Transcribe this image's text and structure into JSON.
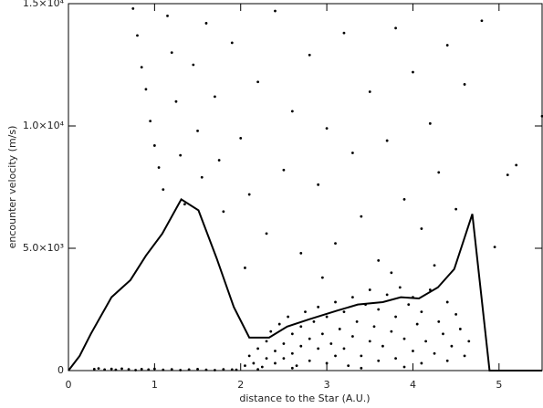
{
  "chart_data": {
    "type": "scatter",
    "xlabel": "distance to the Star (A.U.)",
    "ylabel": "encounter velocity (m/s)",
    "xlim": [
      0,
      5.5
    ],
    "xticks": [
      0,
      1,
      2,
      3,
      4,
      5
    ],
    "ylim": [
      0,
      15000
    ],
    "yticks": [
      0,
      {
        "value": 5000,
        "label": "5.0×10³"
      },
      {
        "value": 10000,
        "label": "1.0×10⁴"
      },
      {
        "value": 15000,
        "label": "1.5×10⁴"
      }
    ],
    "series": [
      {
        "type": "scatter",
        "color": "#000000",
        "x": [
          0.3,
          0.35,
          0.42,
          0.5,
          0.55,
          0.62,
          0.7,
          0.78,
          0.85,
          0.93,
          1.0,
          1.1,
          1.2,
          1.3,
          1.4,
          1.5,
          1.6,
          1.7,
          1.8,
          1.9,
          1.95,
          2.05,
          2.1,
          2.15,
          2.2,
          2.25,
          2.3,
          2.3,
          2.35,
          2.4,
          2.4,
          2.45,
          2.5,
          2.5,
          2.55,
          2.6,
          2.6,
          2.65,
          2.7,
          2.7,
          2.75,
          2.8,
          2.8,
          2.85,
          2.9,
          2.9,
          2.95,
          3.0,
          3.0,
          3.05,
          3.1,
          3.1,
          3.15,
          3.2,
          3.2,
          3.25,
          3.3,
          3.3,
          3.35,
          3.4,
          3.45,
          3.5,
          3.5,
          3.55,
          3.6,
          3.6,
          3.65,
          3.7,
          3.75,
          3.8,
          3.8,
          3.85,
          3.9,
          3.95,
          4.0,
          4.0,
          4.05,
          4.1,
          4.1,
          4.15,
          4.2,
          4.25,
          4.3,
          4.35,
          4.4,
          4.4,
          4.45,
          4.5,
          4.55,
          4.6,
          4.65,
          2.2,
          2.6,
          3.4,
          3.9,
          0.75,
          0.8,
          0.85,
          0.9,
          0.95,
          1.0,
          1.05,
          1.1,
          1.15,
          1.2,
          1.25,
          1.3,
          1.35,
          1.45,
          1.5,
          1.55,
          1.6,
          1.7,
          1.75,
          1.8,
          1.9,
          2.0,
          2.1,
          2.2,
          2.3,
          2.4,
          2.5,
          2.6,
          2.7,
          2.8,
          2.9,
          3.0,
          3.1,
          3.2,
          3.3,
          3.4,
          3.5,
          3.6,
          3.7,
          3.8,
          3.9,
          4.0,
          4.1,
          4.2,
          4.3,
          4.4,
          4.5,
          4.6,
          4.8,
          4.95,
          5.1,
          5.2,
          5.5,
          2.05,
          2.95,
          3.75,
          4.25
        ],
        "values": [
          60,
          90,
          40,
          70,
          30,
          80,
          50,
          20,
          60,
          40,
          70,
          30,
          50,
          20,
          40,
          60,
          30,
          20,
          50,
          40,
          30,
          200,
          600,
          300,
          900,
          150,
          1200,
          500,
          1600,
          800,
          300,
          1900,
          1100,
          500,
          2200,
          1500,
          700,
          200,
          1800,
          1000,
          2400,
          1300,
          400,
          2000,
          900,
          2600,
          1500,
          300,
          2200,
          1100,
          2800,
          600,
          1700,
          2400,
          900,
          200,
          3000,
          1400,
          2000,
          600,
          2700,
          1200,
          3300,
          1800,
          400,
          2500,
          1000,
          3100,
          1600,
          2200,
          500,
          3400,
          1300,
          2700,
          800,
          3000,
          1900,
          300,
          2400,
          1200,
          3300,
          700,
          2000,
          1500,
          2800,
          400,
          1000,
          2300,
          1700,
          600,
          1200,
          50,
          100,
          100,
          150,
          14800,
          13700,
          12400,
          11500,
          10200,
          9200,
          8300,
          7400,
          14500,
          13000,
          11000,
          8800,
          6800,
          12500,
          9800,
          7900,
          14200,
          11200,
          8600,
          6500,
          13400,
          9500,
          7200,
          11800,
          5600,
          14700,
          8200,
          10600,
          4800,
          12900,
          7600,
          9900,
          5200,
          13800,
          8900,
          6300,
          11400,
          4500,
          9400,
          14000,
          7000,
          12200,
          5800,
          10100,
          8100,
          13300,
          6600,
          11700,
          14300,
          5050,
          8000,
          8400,
          10400,
          4200,
          3800,
          4000,
          4300
        ]
      },
      {
        "type": "line",
        "color": "#000000",
        "x": [
          0,
          0.13,
          0.26,
          0.5,
          0.72,
          0.9,
          1.09,
          1.31,
          1.51,
          1.72,
          1.92,
          2.1,
          2.33,
          2.54,
          2.8,
          3.12,
          3.36,
          3.65,
          3.86,
          4.07,
          4.29,
          4.48,
          4.69,
          4.89,
          5.5
        ],
        "values": [
          0,
          600,
          1500,
          3000,
          3700,
          4700,
          5600,
          7000,
          6550,
          4600,
          2600,
          1350,
          1350,
          1800,
          2100,
          2450,
          2700,
          2800,
          3000,
          2950,
          3400,
          4150,
          6400,
          0,
          0
        ]
      }
    ]
  }
}
